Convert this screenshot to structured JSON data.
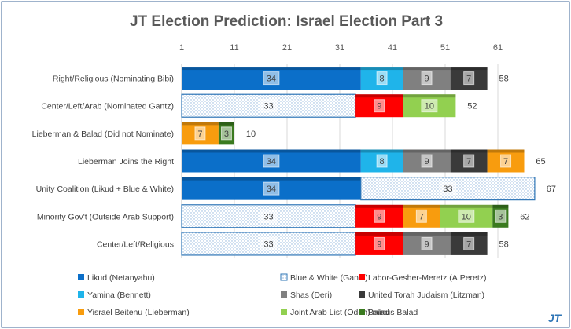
{
  "chart_data": {
    "type": "bar",
    "orientation": "horizontal",
    "stacked": true,
    "title": "JT Election Prediction: Israel Election Part 3",
    "x_ticks": [
      "1",
      "11",
      "21",
      "31",
      "41",
      "51",
      "61"
    ],
    "xlim": [
      1,
      61
    ],
    "grid": true,
    "legend_position": "bottom",
    "parties": [
      {
        "key": "likud",
        "name": "Likud (Netanyahu)",
        "color": "#0b6fc9",
        "pattern": "solid"
      },
      {
        "key": "bw",
        "name": "Blue & White (Gantz)",
        "color": "#2e75b6",
        "pattern": "dotted"
      },
      {
        "key": "labor",
        "name": "Labor-Gesher-Meretz (A.Peretz)",
        "color": "#ff0000",
        "pattern": "solid"
      },
      {
        "key": "yamina",
        "name": "Yamina (Bennett)",
        "color": "#1fb4ea",
        "pattern": "solid"
      },
      {
        "key": "shas",
        "name": "Shas (Deri)",
        "color": "#808080",
        "pattern": "solid"
      },
      {
        "key": "utj",
        "name": "United Torah Judaism (Litzman)",
        "color": "#3a3a3a",
        "pattern": "solid"
      },
      {
        "key": "yb",
        "name": "Yisrael Beitenu (Lieberman)",
        "color": "#f89c0e",
        "pattern": "solid"
      },
      {
        "key": "jal",
        "name": "Joint Arab List (Odeh) minus Balad",
        "color": "#92d050",
        "pattern": "solid"
      },
      {
        "key": "balad",
        "name": "Balad",
        "color": "#3a7a1f",
        "pattern": "solid"
      }
    ],
    "rows": [
      {
        "label": "Right/Religious (Nominating Bibi)",
        "total": "58",
        "segments": [
          {
            "party": "likud",
            "value": 34
          },
          {
            "party": "yamina",
            "value": 8
          },
          {
            "party": "shas",
            "value": 9
          },
          {
            "party": "utj",
            "value": 7
          }
        ]
      },
      {
        "label": "Center/Left/Arab (Nominated Gantz)",
        "total": "52",
        "segments": [
          {
            "party": "bw",
            "value": 33
          },
          {
            "party": "labor",
            "value": 9
          },
          {
            "party": "jal",
            "value": 10
          }
        ]
      },
      {
        "label": "Lieberman & Balad (Did not Nominate)",
        "total": "10",
        "segments": [
          {
            "party": "yb",
            "value": 7
          },
          {
            "party": "balad",
            "value": 3
          }
        ]
      },
      {
        "label": "Lieberman Joins the Right",
        "total": "65",
        "segments": [
          {
            "party": "likud",
            "value": 34
          },
          {
            "party": "yamina",
            "value": 8
          },
          {
            "party": "shas",
            "value": 9
          },
          {
            "party": "utj",
            "value": 7
          },
          {
            "party": "yb",
            "value": 7
          }
        ]
      },
      {
        "label": "Unity Coalition (Likud + Blue & White)",
        "total": "67",
        "segments": [
          {
            "party": "likud",
            "value": 34
          },
          {
            "party": "bw",
            "value": 33
          }
        ]
      },
      {
        "label": "Minority Gov't (Outside Arab Support)",
        "total": "62",
        "segments": [
          {
            "party": "bw",
            "value": 33
          },
          {
            "party": "labor",
            "value": 9
          },
          {
            "party": "yb",
            "value": 7
          },
          {
            "party": "jal",
            "value": 10
          },
          {
            "party": "balad",
            "value": 3
          }
        ]
      },
      {
        "label": "Center/Left/Religious",
        "total": "58",
        "segments": [
          {
            "party": "bw",
            "value": 33
          },
          {
            "party": "labor",
            "value": 9
          },
          {
            "party": "shas",
            "value": 9
          },
          {
            "party": "utj",
            "value": 7
          }
        ]
      }
    ]
  },
  "logo": {
    "text": "JT"
  }
}
